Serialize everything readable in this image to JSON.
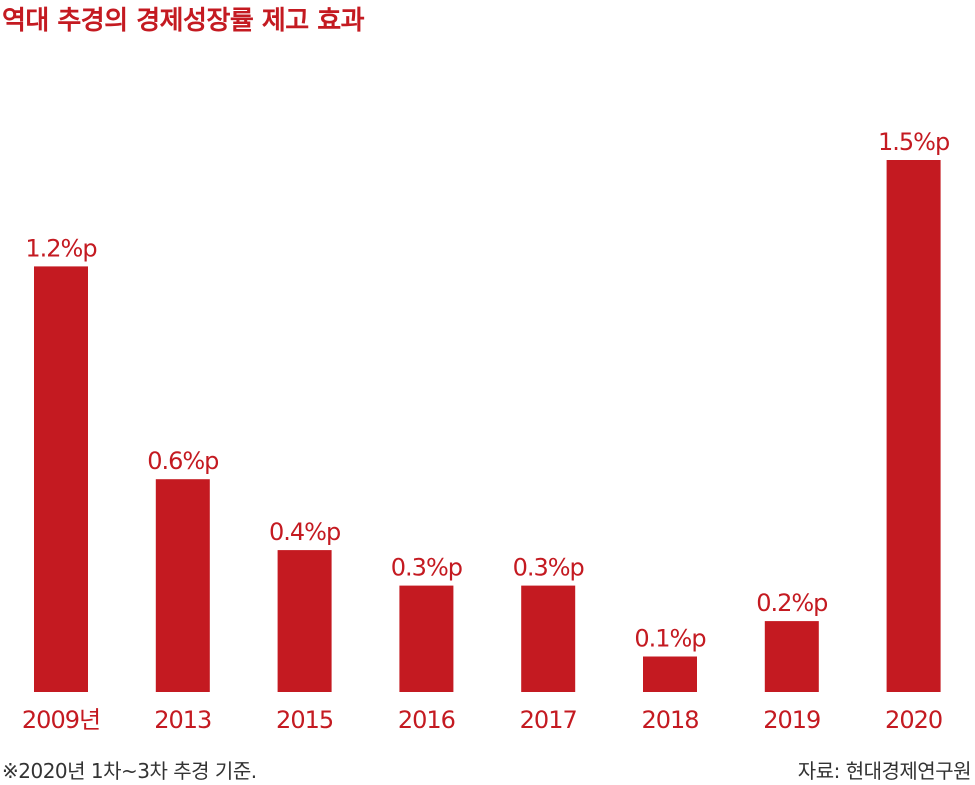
{
  "chart_title": "역대 추경의 경제성장률 제고 효과",
  "footnote": "※2020년 1차~3차  추경 기준.",
  "source": "자료: 현대경제연구원",
  "colors": {
    "bar": "#c41a21",
    "value_label": "#c41a21",
    "category_label": "#c41a21"
  },
  "chart_data": {
    "type": "bar",
    "title": "역대 추경의 경제성장률 제고 효과",
    "xlabel": "",
    "ylabel": "",
    "categories": [
      "2009년",
      "2013",
      "2015",
      "2016",
      "2017",
      "2018",
      "2019",
      "2020"
    ],
    "values": [
      1.2,
      0.6,
      0.4,
      0.3,
      0.3,
      0.1,
      0.2,
      1.5
    ],
    "value_labels": [
      "1.2%p",
      "0.6%p",
      "0.4%p",
      "0.3%p",
      "0.3%p",
      "0.1%p",
      "0.2%p",
      "1.5%p"
    ],
    "ylim": [
      0,
      1.5
    ],
    "grid": false,
    "legend": "none"
  }
}
